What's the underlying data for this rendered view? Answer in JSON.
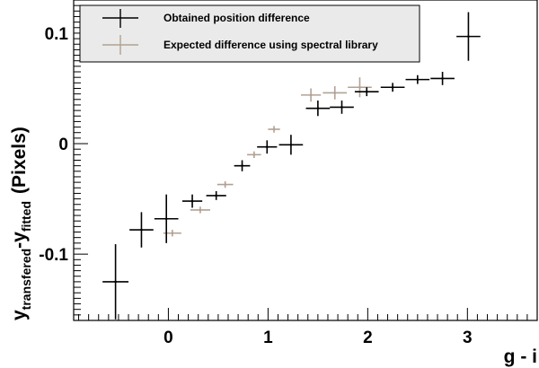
{
  "chart_data": {
    "type": "scatter",
    "xlabel": "g - i",
    "ylabel": {
      "main": "y",
      "sub1": "transfered",
      "mid": "-y",
      "sub2": "fitted",
      "tail": "(Pixels)"
    },
    "xlim": [
      -0.95,
      3.7
    ],
    "ylim": [
      -0.16,
      0.13
    ],
    "x_ticks": [
      0,
      1,
      2,
      3
    ],
    "y_ticks": [
      -0.1,
      0,
      0.1
    ],
    "x_tick_labels": [
      "0",
      "1",
      "2",
      "3"
    ],
    "y_tick_labels": [
      "-0.1",
      "0",
      "0.1"
    ],
    "legend_position": "top-left",
    "series": [
      {
        "name": "Obtained position difference",
        "color": "#000000",
        "points": [
          {
            "x": -0.53,
            "y": -0.125,
            "xerr": 0.13,
            "yerr": 0.034
          },
          {
            "x": -0.27,
            "y": -0.078,
            "xerr": 0.12,
            "yerr": 0.016
          },
          {
            "x": -0.02,
            "y": -0.068,
            "xerr": 0.12,
            "yerr": 0.022
          },
          {
            "x": 0.24,
            "y": -0.052,
            "xerr": 0.1,
            "yerr": 0.006
          },
          {
            "x": 0.48,
            "y": -0.047,
            "xerr": 0.1,
            "yerr": 0.004
          },
          {
            "x": 0.74,
            "y": -0.02,
            "xerr": 0.08,
            "yerr": 0.005
          },
          {
            "x": 0.99,
            "y": -0.003,
            "xerr": 0.1,
            "yerr": 0.006
          },
          {
            "x": 1.23,
            "y": -0.001,
            "xerr": 0.12,
            "yerr": 0.009
          },
          {
            "x": 1.5,
            "y": 0.032,
            "xerr": 0.12,
            "yerr": 0.007
          },
          {
            "x": 1.74,
            "y": 0.033,
            "xerr": 0.12,
            "yerr": 0.006
          },
          {
            "x": 1.99,
            "y": 0.047,
            "xerr": 0.12,
            "yerr": 0.004
          },
          {
            "x": 2.25,
            "y": 0.051,
            "xerr": 0.12,
            "yerr": 0.004
          },
          {
            "x": 2.5,
            "y": 0.058,
            "xerr": 0.12,
            "yerr": 0.004
          },
          {
            "x": 2.75,
            "y": 0.059,
            "xerr": 0.12,
            "yerr": 0.006
          },
          {
            "x": 3.01,
            "y": 0.097,
            "xerr": 0.12,
            "yerr": 0.022
          }
        ]
      },
      {
        "name": "Expected difference using spectral library",
        "color": "#b2a193",
        "points": [
          {
            "x": 0.04,
            "y": -0.081,
            "xerr": 0.09,
            "yerr": 0.003
          },
          {
            "x": 0.32,
            "y": -0.06,
            "xerr": 0.1,
            "yerr": 0.003
          },
          {
            "x": 0.57,
            "y": -0.037,
            "xerr": 0.08,
            "yerr": 0.003
          },
          {
            "x": 0.86,
            "y": -0.01,
            "xerr": 0.07,
            "yerr": 0.003
          },
          {
            "x": 1.06,
            "y": 0.013,
            "xerr": 0.06,
            "yerr": 0.003
          },
          {
            "x": 1.43,
            "y": 0.044,
            "xerr": 0.1,
            "yerr": 0.006
          },
          {
            "x": 1.67,
            "y": 0.046,
            "xerr": 0.12,
            "yerr": 0.006
          },
          {
            "x": 1.92,
            "y": 0.051,
            "xerr": 0.12,
            "yerr": 0.009
          }
        ]
      }
    ]
  }
}
